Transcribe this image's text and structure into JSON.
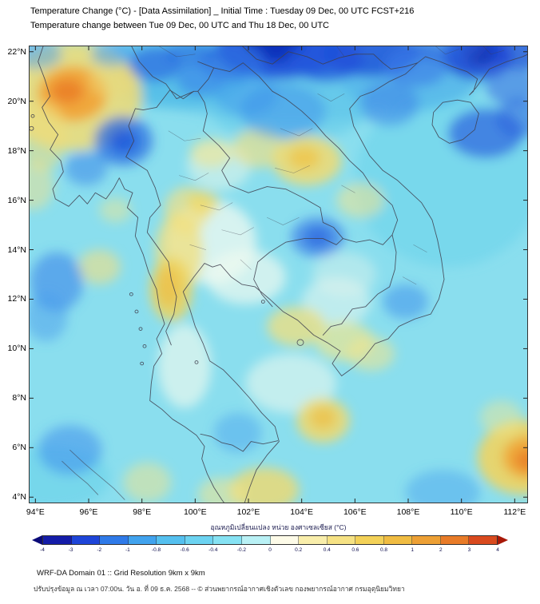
{
  "header": {
    "title_line1": "Temperature Change (°C) - [Data Assimilation] _ Initial Time : Tuesday 09 Dec, 00 UTC FCST+216",
    "title_line2": "Temperature change between Tue 09 Dec, 00 UTC and Thu 18 Dec, 00 UTC"
  },
  "map": {
    "lon_min": 93.75,
    "lon_max": 112.5,
    "lat_min": 3.75,
    "lat_max": 22.25,
    "lon_ticks": [
      {
        "label": "94°E",
        "value": 94
      },
      {
        "label": "96°E",
        "value": 96
      },
      {
        "label": "98°E",
        "value": 98
      },
      {
        "label": "100°E",
        "value": 100
      },
      {
        "label": "102°E",
        "value": 102
      },
      {
        "label": "104°E",
        "value": 104
      },
      {
        "label": "106°E",
        "value": 106
      },
      {
        "label": "108°E",
        "value": 108
      },
      {
        "label": "110°E",
        "value": 110
      },
      {
        "label": "112°E",
        "value": 112
      }
    ],
    "lat_ticks": [
      {
        "label": "22°N",
        "value": 22
      },
      {
        "label": "20°N",
        "value": 20
      },
      {
        "label": "18°N",
        "value": 18
      },
      {
        "label": "16°N",
        "value": 16
      },
      {
        "label": "14°N",
        "value": 14
      },
      {
        "label": "12°N",
        "value": 12
      },
      {
        "label": "10°N",
        "value": 10
      },
      {
        "label": "8°N",
        "value": 8
      },
      {
        "label": "6°N",
        "value": 6
      },
      {
        "label": "4°N",
        "value": 4
      }
    ],
    "base_color": "#8adeee",
    "anomalies": [
      {
        "lon": 104.0,
        "lat": 21.0,
        "rx": 7.0,
        "ry": 1.8,
        "c": "#46b4e6",
        "o": 0.45
      },
      {
        "lon": 103.5,
        "lat": 19.8,
        "rx": 3.0,
        "ry": 1.5,
        "c": "#5ec8ea",
        "o": 0.5
      },
      {
        "lon": 109.5,
        "lat": 16.8,
        "rx": 3.5,
        "ry": 3.5,
        "c": "#66d2ec",
        "o": 0.5
      },
      {
        "lon": 99.0,
        "lat": 21.2,
        "rx": 3.0,
        "ry": 1.5,
        "c": "#49b8e6",
        "o": 0.55
      },
      {
        "lon": 94.6,
        "lat": 4.8,
        "rx": 2.2,
        "ry": 1.3,
        "c": "#62cfea",
        "o": 0.5
      },
      {
        "lon": 108.0,
        "lat": 20.9,
        "rx": 2.5,
        "ry": 1.3,
        "c": "#4aa8e8",
        "o": 0.45
      },
      {
        "lon": 100.6,
        "lat": 14.3,
        "rx": 1.7,
        "ry": 1.7,
        "c": "#f0faf0",
        "o": 0.75
      },
      {
        "lon": 101.9,
        "lat": 12.9,
        "rx": 1.5,
        "ry": 1.1,
        "c": "#eef9f0",
        "o": 0.7
      },
      {
        "lon": 99.6,
        "lat": 9.3,
        "rx": 1.0,
        "ry": 1.7,
        "c": "#f0faee",
        "o": 0.65
      },
      {
        "lon": 103.6,
        "lat": 8.6,
        "rx": 1.7,
        "ry": 1.2,
        "c": "#eaf8ee",
        "o": 0.6
      },
      {
        "lon": 105.3,
        "lat": 11.9,
        "rx": 1.3,
        "ry": 1.0,
        "c": "#e9f8ef",
        "o": 0.55
      },
      {
        "lon": 100.9,
        "lat": 17.4,
        "rx": 1.2,
        "ry": 1.0,
        "c": "#e6f6e9",
        "o": 0.55
      },
      {
        "lon": 105.6,
        "lat": 13.0,
        "rx": 1.2,
        "ry": 0.9,
        "c": "#dff4ea",
        "o": 0.45
      },
      {
        "lon": 95.4,
        "lat": 20.2,
        "rx": 2.6,
        "ry": 2.2,
        "c": "#f1dc74",
        "o": 0.85
      },
      {
        "lon": 95.4,
        "lat": 20.3,
        "rx": 1.3,
        "ry": 1.1,
        "c": "#f0a439",
        "o": 0.95
      },
      {
        "lon": 95.2,
        "lat": 20.4,
        "rx": 0.62,
        "ry": 0.5,
        "c": "#ea8128",
        "o": 0.9
      },
      {
        "lon": 94.3,
        "lat": 18.6,
        "rx": 0.9,
        "ry": 1.4,
        "c": "#f0dc7a",
        "o": 0.55
      },
      {
        "lon": 96.9,
        "lat": 20.9,
        "rx": 0.9,
        "ry": 0.8,
        "c": "#f0dc7a",
        "o": 0.5
      },
      {
        "lon": 93.9,
        "lat": 16.6,
        "rx": 0.8,
        "ry": 1.0,
        "c": "#f3e48c",
        "o": 0.5
      },
      {
        "lon": 100.6,
        "lat": 17.9,
        "rx": 0.8,
        "ry": 0.6,
        "c": "#f3e68f",
        "o": 0.6
      },
      {
        "lon": 102.4,
        "lat": 18.1,
        "rx": 1.0,
        "ry": 0.8,
        "c": "#f1e084",
        "o": 0.65
      },
      {
        "lon": 104.2,
        "lat": 17.6,
        "rx": 1.3,
        "ry": 1.0,
        "c": "#f1db72",
        "o": 0.85
      },
      {
        "lon": 104.1,
        "lat": 17.7,
        "rx": 0.6,
        "ry": 0.45,
        "c": "#eec74f",
        "o": 0.85
      },
      {
        "lon": 106.2,
        "lat": 16.0,
        "rx": 0.9,
        "ry": 0.7,
        "c": "#f3e68f",
        "o": 0.55
      },
      {
        "lon": 99.7,
        "lat": 15.6,
        "rx": 0.85,
        "ry": 0.95,
        "c": "#f1e084",
        "o": 0.7
      },
      {
        "lon": 100.3,
        "lat": 15.9,
        "rx": 0.6,
        "ry": 0.5,
        "c": "#efd763",
        "o": 0.7
      },
      {
        "lon": 99.4,
        "lat": 13.9,
        "rx": 0.9,
        "ry": 1.6,
        "c": "#f1df7c",
        "o": 0.75
      },
      {
        "lon": 99.1,
        "lat": 12.4,
        "rx": 0.8,
        "ry": 1.3,
        "c": "#efd35e",
        "o": 0.85
      },
      {
        "lon": 99.0,
        "lat": 12.5,
        "rx": 0.45,
        "ry": 0.8,
        "c": "#ecc04a",
        "o": 0.8
      },
      {
        "lon": 96.4,
        "lat": 13.3,
        "rx": 0.8,
        "ry": 0.7,
        "c": "#f1e084",
        "o": 0.6
      },
      {
        "lon": 97.0,
        "lat": 15.6,
        "rx": 0.6,
        "ry": 0.5,
        "c": "#f3e68c",
        "o": 0.45
      },
      {
        "lon": 103.8,
        "lat": 10.9,
        "rx": 1.1,
        "ry": 0.8,
        "c": "#f1df7c",
        "o": 0.75
      },
      {
        "lon": 105.6,
        "lat": 10.3,
        "rx": 1.1,
        "ry": 0.8,
        "c": "#f3e68c",
        "o": 0.65
      },
      {
        "lon": 106.6,
        "lat": 9.8,
        "rx": 0.9,
        "ry": 0.7,
        "c": "#f3e68c",
        "o": 0.55
      },
      {
        "lon": 104.8,
        "lat": 7.1,
        "rx": 1.0,
        "ry": 0.9,
        "c": "#f0d96e",
        "o": 0.85
      },
      {
        "lon": 104.8,
        "lat": 7.2,
        "rx": 0.5,
        "ry": 0.45,
        "c": "#eec24a",
        "o": 0.8
      },
      {
        "lon": 102.6,
        "lat": 4.3,
        "rx": 1.3,
        "ry": 0.9,
        "c": "#f0d96e",
        "o": 0.8
      },
      {
        "lon": 101.0,
        "lat": 4.1,
        "rx": 0.9,
        "ry": 0.7,
        "c": "#f3e68c",
        "o": 0.55
      },
      {
        "lon": 98.2,
        "lat": 4.6,
        "rx": 0.9,
        "ry": 0.8,
        "c": "#f3e68c",
        "o": 0.5
      },
      {
        "lon": 112.3,
        "lat": 5.6,
        "rx": 1.7,
        "ry": 1.5,
        "c": "#f0d463",
        "o": 0.9
      },
      {
        "lon": 112.5,
        "lat": 5.6,
        "rx": 0.95,
        "ry": 0.85,
        "c": "#efa83a",
        "o": 0.95
      },
      {
        "lon": 112.5,
        "lat": 5.5,
        "rx": 0.5,
        "ry": 0.42,
        "c": "#e8812a",
        "o": 0.9
      },
      {
        "lon": 111.5,
        "lat": 7.2,
        "rx": 0.8,
        "ry": 0.7,
        "c": "#f3e68c",
        "o": 0.45
      },
      {
        "lon": 103.1,
        "lat": 22.1,
        "rx": 2.3,
        "ry": 1.2,
        "c": "#1c4ad8",
        "o": 0.9
      },
      {
        "lon": 103.0,
        "lat": 22.2,
        "rx": 1.2,
        "ry": 0.6,
        "c": "#1030b8",
        "o": 0.9
      },
      {
        "lon": 101.4,
        "lat": 21.6,
        "rx": 1.2,
        "ry": 0.8,
        "c": "#2f70e2",
        "o": 0.75
      },
      {
        "lon": 104.9,
        "lat": 21.7,
        "rx": 1.4,
        "ry": 0.9,
        "c": "#2258dc",
        "o": 0.8
      },
      {
        "lon": 106.6,
        "lat": 21.9,
        "rx": 1.8,
        "ry": 0.9,
        "c": "#1f50d8",
        "o": 0.8
      },
      {
        "lon": 108.3,
        "lat": 21.4,
        "rx": 1.2,
        "ry": 0.8,
        "c": "#3a7de8",
        "o": 0.65
      },
      {
        "lon": 110.6,
        "lat": 21.8,
        "rx": 1.3,
        "ry": 0.9,
        "c": "#1c46d4",
        "o": 0.85
      },
      {
        "lon": 110.7,
        "lat": 22.0,
        "rx": 0.7,
        "ry": 0.5,
        "c": "#1230b0",
        "o": 0.85
      },
      {
        "lon": 111.9,
        "lat": 20.6,
        "rx": 1.0,
        "ry": 0.8,
        "c": "#2e66e0",
        "o": 0.55
      },
      {
        "lon": 110.9,
        "lat": 18.7,
        "rx": 1.4,
        "ry": 1.0,
        "c": "#2b63de",
        "o": 0.7
      },
      {
        "lon": 112.2,
        "lat": 19.3,
        "rx": 0.9,
        "ry": 0.8,
        "c": "#2b63de",
        "o": 0.55
      },
      {
        "lon": 98.5,
        "lat": 21.5,
        "rx": 1.0,
        "ry": 0.7,
        "c": "#2f70e2",
        "o": 0.75
      },
      {
        "lon": 100.2,
        "lat": 20.9,
        "rx": 0.9,
        "ry": 0.7,
        "c": "#3c86ea",
        "o": 0.65
      },
      {
        "lon": 99.8,
        "lat": 21.9,
        "rx": 1.0,
        "ry": 0.5,
        "c": "#2f70e2",
        "o": 0.65
      },
      {
        "lon": 96.9,
        "lat": 21.9,
        "rx": 0.8,
        "ry": 0.5,
        "c": "#4a9eee",
        "o": 0.55
      },
      {
        "lon": 94.0,
        "lat": 21.9,
        "rx": 1.0,
        "ry": 0.6,
        "c": "#4a9eee",
        "o": 0.5
      },
      {
        "lon": 97.3,
        "lat": 18.4,
        "rx": 1.1,
        "ry": 1.0,
        "c": "#2f70e2",
        "o": 0.75
      },
      {
        "lon": 97.3,
        "lat": 18.4,
        "rx": 0.55,
        "ry": 0.5,
        "c": "#1d50d8",
        "o": 0.7
      },
      {
        "lon": 95.9,
        "lat": 17.3,
        "rx": 0.8,
        "ry": 0.7,
        "c": "#3c86ea",
        "o": 0.55
      },
      {
        "lon": 103.3,
        "lat": 19.6,
        "rx": 1.6,
        "ry": 1.1,
        "c": "#3f92ec",
        "o": 0.5
      },
      {
        "lon": 101.9,
        "lat": 20.3,
        "rx": 1.2,
        "ry": 0.9,
        "c": "#3f92ec",
        "o": 0.45
      },
      {
        "lon": 107.3,
        "lat": 19.9,
        "rx": 1.1,
        "ry": 0.9,
        "c": "#3a80e8",
        "o": 0.5
      },
      {
        "lon": 104.6,
        "lat": 14.5,
        "rx": 1.0,
        "ry": 0.8,
        "c": "#3578e6",
        "o": 0.65
      },
      {
        "lon": 104.6,
        "lat": 14.5,
        "rx": 0.5,
        "ry": 0.4,
        "c": "#2258dc",
        "o": 0.6
      },
      {
        "lon": 94.8,
        "lat": 12.7,
        "rx": 1.0,
        "ry": 1.2,
        "c": "#3b86ea",
        "o": 0.6
      },
      {
        "lon": 94.4,
        "lat": 11.3,
        "rx": 0.8,
        "ry": 1.0,
        "c": "#4a9eee",
        "o": 0.5
      },
      {
        "lon": 107.9,
        "lat": 11.9,
        "rx": 0.85,
        "ry": 0.7,
        "c": "#3f92ec",
        "o": 0.55
      },
      {
        "lon": 95.3,
        "lat": 5.9,
        "rx": 1.2,
        "ry": 1.0,
        "c": "#3f8eec",
        "o": 0.55
      },
      {
        "lon": 101.6,
        "lat": 6.6,
        "rx": 0.9,
        "ry": 0.8,
        "c": "#45a0ee",
        "o": 0.45
      },
      {
        "lon": 109.3,
        "lat": 4.2,
        "rx": 1.4,
        "ry": 0.9,
        "c": "#45a0ee",
        "o": 0.45
      },
      {
        "lon": 112.4,
        "lat": 22.1,
        "rx": 1.4,
        "ry": 0.8,
        "c": "#1c46d4",
        "o": 0.7
      },
      {
        "lon": 109.4,
        "lat": 22.2,
        "rx": 1.4,
        "ry": 0.6,
        "c": "#2a62de",
        "o": 0.55
      }
    ]
  },
  "colorbar": {
    "title": "อุณหภูมิเปลี่ยนแปลง หน่วย องศาเซลเซียส (°C)",
    "tick_labels": [
      "-4",
      "-3",
      "-2",
      "-1",
      "-0.8",
      "-0.6",
      "-0.4",
      "-0.2",
      "0",
      "0.2",
      "0.4",
      "0.6",
      "0.8",
      "1",
      "2",
      "3",
      "4"
    ],
    "segment_colors": [
      "#141ca8",
      "#1e45d8",
      "#2f7ae8",
      "#41a3ee",
      "#55c0ef",
      "#6cd3f1",
      "#86e2f3",
      "#b9f1f5",
      "#fdfbe8",
      "#f9eeab",
      "#f6e284",
      "#f3d158",
      "#f0bc42",
      "#eda035",
      "#e87b28",
      "#d94a1e"
    ],
    "left_arrow_color": "#0a0a78",
    "right_arrow_color": "#a81808"
  },
  "footer": {
    "line1": "WRF-DA Domain 01 :: Grid Resolution 9km x 9km",
    "line2": "ปรับปรุงข้อมูล ณ เวลา 07:00น. วัน อ. ที่ 09 ธ.ค. 2568 -- © ส่วนพยากรณ์อากาศเชิงตัวเลข กองพยากรณ์อากาศ กรมอุตุนิยมวิทยา"
  }
}
